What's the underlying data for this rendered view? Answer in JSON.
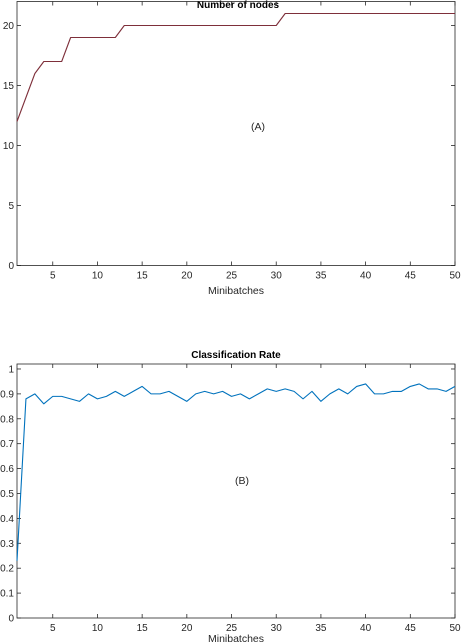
{
  "chart_data": [
    {
      "type": "line",
      "title": "Number of nodes",
      "xlabel": "Minibatches",
      "ylabel": "",
      "xlim": [
        1,
        50
      ],
      "ylim": [
        0,
        22
      ],
      "xticks": [
        5,
        10,
        15,
        20,
        25,
        30,
        35,
        40,
        45,
        50
      ],
      "yticks": [
        0,
        5,
        10,
        15,
        20
      ],
      "grid": false,
      "annotation": "(A)",
      "series": [
        {
          "color": "#7e2f3a",
          "x": [
            1,
            2,
            3,
            4,
            5,
            6,
            7,
            8,
            9,
            10,
            11,
            12,
            13,
            14,
            15,
            16,
            17,
            18,
            19,
            20,
            21,
            22,
            23,
            24,
            25,
            26,
            27,
            28,
            29,
            30,
            31,
            32,
            33,
            34,
            35,
            36,
            37,
            38,
            39,
            40,
            41,
            42,
            43,
            44,
            45,
            46,
            47,
            48,
            49,
            50
          ],
          "values": [
            12,
            14,
            16,
            17,
            17,
            17,
            19,
            19,
            19,
            19,
            19,
            19,
            20,
            20,
            20,
            20,
            20,
            20,
            20,
            20,
            20,
            20,
            20,
            20,
            20,
            20,
            20,
            20,
            20,
            20,
            21,
            21,
            21,
            21,
            21,
            21,
            21,
            21,
            21,
            21,
            21,
            21,
            21,
            21,
            21,
            21,
            21,
            21,
            21,
            21
          ]
        }
      ]
    },
    {
      "type": "line",
      "title": "Classification Rate",
      "xlabel": "Minibatches",
      "ylabel": "",
      "xlim": [
        1,
        50
      ],
      "ylim": [
        0,
        1.02
      ],
      "xticks": [
        5,
        10,
        15,
        20,
        25,
        30,
        35,
        40,
        45,
        50
      ],
      "yticks": [
        0,
        0.1,
        0.2,
        0.3,
        0.4,
        0.5,
        0.6,
        0.7,
        0.8,
        0.9,
        1
      ],
      "ytick_labels": [
        "0",
        "0.1",
        "0.2",
        "0.3",
        "0.4",
        "0.5",
        "0.6",
        "0.7",
        "0.8",
        "0.9",
        "1"
      ],
      "grid": false,
      "annotation": "(B)",
      "series": [
        {
          "color": "#0072bd",
          "x": [
            1,
            2,
            3,
            4,
            5,
            6,
            7,
            8,
            9,
            10,
            11,
            12,
            13,
            14,
            15,
            16,
            17,
            18,
            19,
            20,
            21,
            22,
            23,
            24,
            25,
            26,
            27,
            28,
            29,
            30,
            31,
            32,
            33,
            34,
            35,
            36,
            37,
            38,
            39,
            40,
            41,
            42,
            43,
            44,
            45,
            46,
            47,
            48,
            49,
            50
          ],
          "values": [
            0.23,
            0.88,
            0.9,
            0.86,
            0.89,
            0.89,
            0.88,
            0.87,
            0.9,
            0.88,
            0.89,
            0.91,
            0.89,
            0.91,
            0.93,
            0.9,
            0.9,
            0.91,
            0.89,
            0.87,
            0.9,
            0.91,
            0.9,
            0.91,
            0.89,
            0.9,
            0.88,
            0.9,
            0.92,
            0.91,
            0.92,
            0.91,
            0.88,
            0.91,
            0.87,
            0.9,
            0.92,
            0.9,
            0.93,
            0.94,
            0.9,
            0.9,
            0.91,
            0.91,
            0.93,
            0.94,
            0.92,
            0.92,
            0.91,
            0.93
          ]
        }
      ]
    }
  ]
}
